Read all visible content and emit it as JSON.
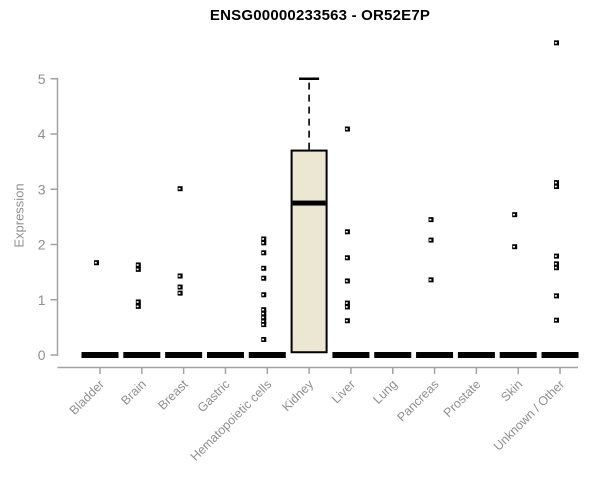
{
  "header": {
    "title": "ENSG00000233563 - OR52E7P"
  },
  "chart_data": {
    "type": "boxplot",
    "title": "ENSG00000233563 - OR52E7P",
    "ylabel": "Expression",
    "xlabel": "",
    "ylim": [
      0,
      5
    ],
    "yticks": [
      0,
      1,
      2,
      3,
      4,
      5
    ],
    "grid": false,
    "legend_position": "none",
    "categories": [
      "Bladder",
      "Brain",
      "Breast",
      "Gastric",
      "Hematopoietic cells",
      "Kidney",
      "Liver",
      "Lung",
      "Pancreas",
      "Prostate",
      "Skin",
      "Unknown / Other"
    ],
    "series": [
      {
        "category": "Bladder",
        "q1": 0,
        "median": 0,
        "q3": 0,
        "whisker_low": 0,
        "whisker_high": 0,
        "outliers": [
          1.67
        ]
      },
      {
        "category": "Brain",
        "q1": 0,
        "median": 0,
        "q3": 0,
        "whisker_low": 0,
        "whisker_high": 0,
        "outliers": [
          1.63,
          1.55,
          0.96,
          0.88
        ]
      },
      {
        "category": "Breast",
        "q1": 0,
        "median": 0,
        "q3": 0,
        "whisker_low": 0,
        "whisker_high": 0,
        "outliers": [
          3.01,
          1.43,
          1.23,
          1.12
        ]
      },
      {
        "category": "Gastric",
        "q1": 0,
        "median": 0,
        "q3": 0,
        "whisker_low": 0,
        "whisker_high": 0,
        "outliers": []
      },
      {
        "category": "Hematopoietic cells",
        "q1": 0,
        "median": 0,
        "q3": 0,
        "whisker_low": 0,
        "whisker_high": 0,
        "outliers": [
          2.1,
          2.03,
          1.85,
          1.57,
          1.39,
          1.09,
          0.82,
          0.75,
          0.68,
          0.61,
          0.55,
          0.28
        ]
      },
      {
        "category": "Kidney",
        "q1": 0.05,
        "median": 2.75,
        "q3": 3.7,
        "whisker_low": 0.05,
        "whisker_high": 5.0,
        "outliers": []
      },
      {
        "category": "Liver",
        "q1": 0,
        "median": 0,
        "q3": 0,
        "whisker_low": 0,
        "whisker_high": 0,
        "outliers": [
          4.09,
          2.23,
          1.76,
          1.34,
          0.94,
          0.87,
          0.62
        ]
      },
      {
        "category": "Lung",
        "q1": 0,
        "median": 0,
        "q3": 0,
        "whisker_low": 0,
        "whisker_high": 0,
        "outliers": []
      },
      {
        "category": "Pancreas",
        "q1": 0,
        "median": 0,
        "q3": 0,
        "whisker_low": 0,
        "whisker_high": 0,
        "outliers": [
          2.45,
          2.08,
          1.36
        ]
      },
      {
        "category": "Prostate",
        "q1": 0,
        "median": 0,
        "q3": 0,
        "whisker_low": 0,
        "whisker_high": 0,
        "outliers": []
      },
      {
        "category": "Skin",
        "q1": 0,
        "median": 0,
        "q3": 0,
        "whisker_low": 0,
        "whisker_high": 0,
        "outliers": [
          2.54,
          1.96
        ]
      },
      {
        "category": "Unknown / Other",
        "q1": 0,
        "median": 0,
        "q3": 0,
        "whisker_low": 0,
        "whisker_high": 0,
        "outliers": [
          5.65,
          3.12,
          3.05,
          1.79,
          1.65,
          1.58,
          1.07,
          0.63
        ]
      }
    ],
    "colors": {
      "box_fill": "#ece7d2",
      "box_stroke": "#000000",
      "median": "#000000",
      "point": "#000000",
      "axis": "#a3a3a3",
      "tick_label": "#8f8f8f",
      "title": "#000000"
    }
  }
}
